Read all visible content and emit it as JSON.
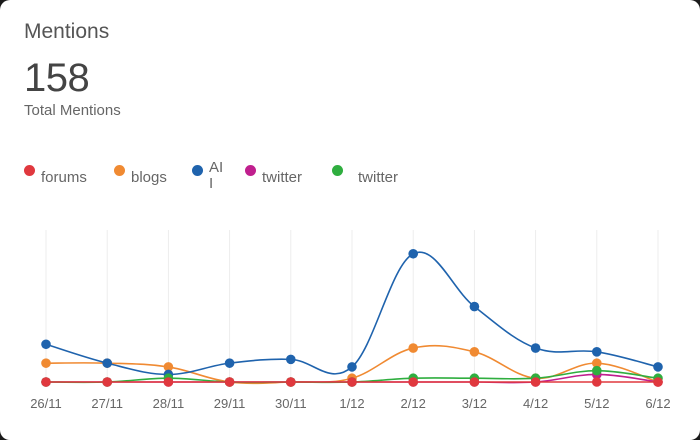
{
  "widget": {
    "title": "Mentions",
    "total_value": "158",
    "total_label": "Total Mentions"
  },
  "legend": [
    {
      "label": "forums",
      "color": "#e0383e"
    },
    {
      "label": "blogs",
      "color": "#f08a32"
    },
    {
      "label": "AII",
      "color": "#1f63ad"
    },
    {
      "label": "twitter",
      "color": "#c01f8e"
    },
    {
      "label": "twitter",
      "color": "#2fae3f"
    }
  ],
  "chart_data": {
    "type": "line",
    "categories": [
      "26/11",
      "27/11",
      "28/11",
      "29/11",
      "30/11",
      "1/12",
      "2/12",
      "3/12",
      "4/12",
      "5/12",
      "6/12"
    ],
    "ylim": [
      0,
      35
    ],
    "grid": true,
    "legend_position": "top-left",
    "series": [
      {
        "name": "forums",
        "color": "#e0383e",
        "values": [
          0,
          0,
          0,
          0,
          0,
          0,
          0,
          0,
          0,
          0,
          0
        ]
      },
      {
        "name": "blogs",
        "color": "#f08a32",
        "values": [
          5,
          5,
          4,
          0,
          0,
          1,
          9,
          8,
          1,
          5,
          0
        ]
      },
      {
        "name": "AII",
        "color": "#1f63ad",
        "values": [
          10,
          5,
          2,
          5,
          6,
          4,
          34,
          20,
          9,
          8,
          4
        ]
      },
      {
        "name": "twitter",
        "color": "#c01f8e",
        "values": [
          0,
          0,
          0,
          0,
          0,
          0,
          0,
          0,
          0,
          2,
          0
        ]
      },
      {
        "name": "twitter",
        "color": "#2fae3f",
        "values": [
          0,
          0,
          1,
          0,
          0,
          0,
          1,
          1,
          1,
          3,
          1
        ]
      }
    ]
  }
}
